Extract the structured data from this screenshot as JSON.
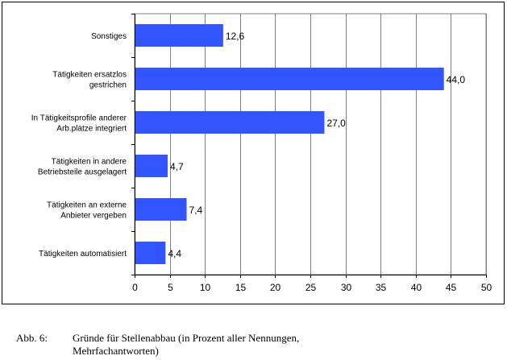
{
  "chart_data": {
    "type": "bar",
    "orientation": "horizontal",
    "categories": [
      [
        "Sonstiges"
      ],
      [
        "Tätigkeiten ersatzlos",
        "gestrichen"
      ],
      [
        "In Tätigkeitsprofile anderer",
        "Arb.plätze integriert"
      ],
      [
        "Tätigkeiten in andere",
        "Betriebsteile ausgelagert"
      ],
      [
        "Tätigkeiten an externe",
        "Anbieter vergeben"
      ],
      [
        "Tätigkeiten automatisiert"
      ]
    ],
    "values": [
      12.6,
      44.0,
      27.0,
      4.7,
      7.4,
      4.4
    ],
    "value_labels": [
      "12,6",
      "44,0",
      "27,0",
      "4,7",
      "7,4",
      "4,4"
    ],
    "xlim": [
      0,
      50
    ],
    "xticks": [
      0,
      5,
      10,
      15,
      20,
      25,
      30,
      35,
      40,
      45,
      50
    ],
    "grid": "vertical",
    "bar_color": "#3355ff",
    "title": "",
    "xlabel": "",
    "ylabel": ""
  },
  "caption": {
    "number": "Abb. 6:",
    "text": "Gründe für Stellenabbau (in Prozent aller Nennungen,\nMehrfachantworten)"
  }
}
